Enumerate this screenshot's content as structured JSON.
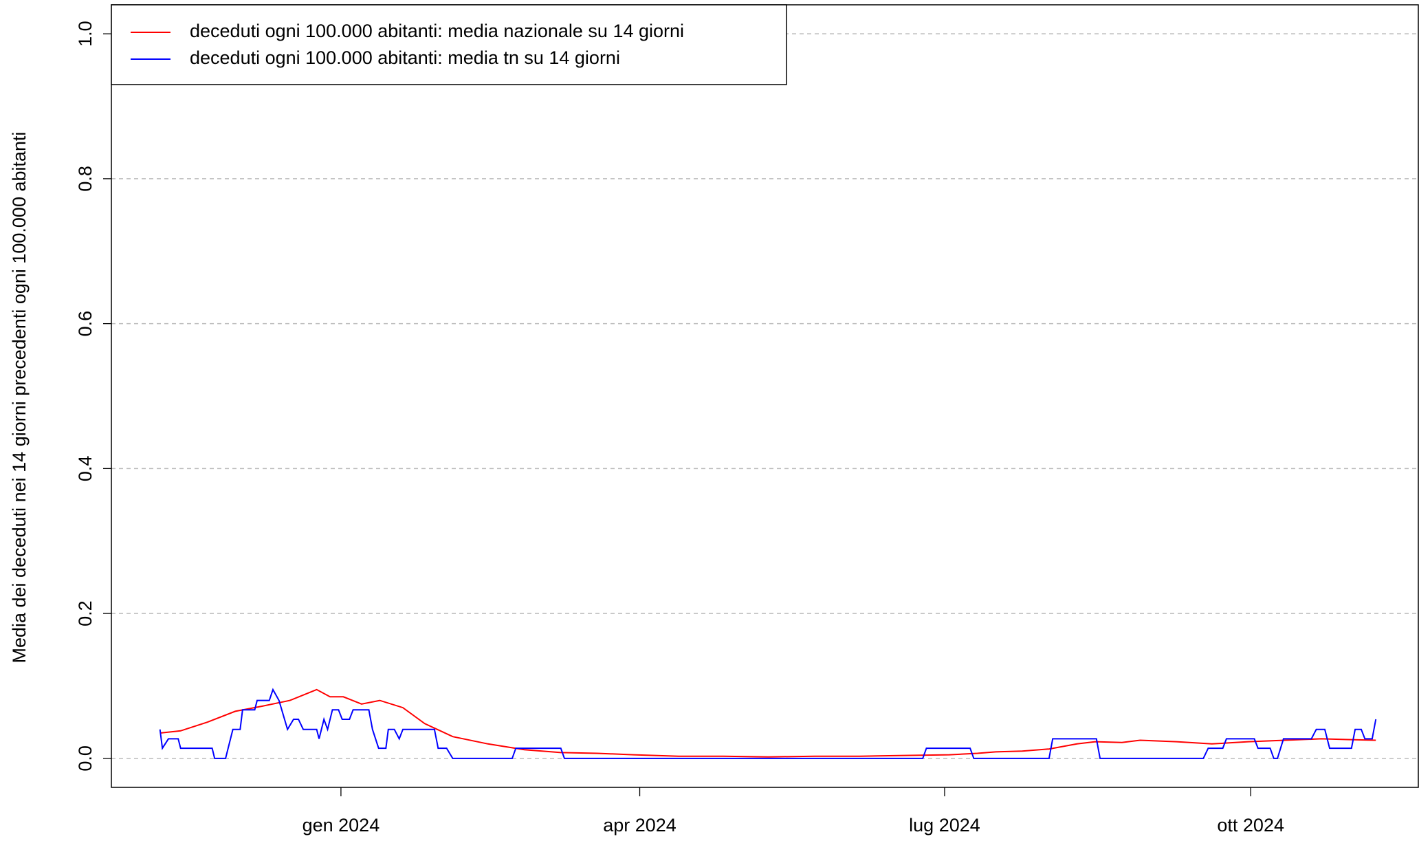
{
  "chart_data": {
    "type": "line",
    "y_label": "Media dei deceduti nei 14 giorni precedenti ogni 100.000 abitanti",
    "xlim": [
      2023.811,
      2024.887
    ],
    "xticks": [
      {
        "value": 2024.0,
        "label": "gen 2024"
      },
      {
        "value": 2024.246,
        "label": "apr 2024"
      },
      {
        "value": 2024.497,
        "label": "lug 2024"
      },
      {
        "value": 2024.749,
        "label": "ott 2024"
      }
    ],
    "ylim": [
      -0.04,
      1.04
    ],
    "yticks": [
      {
        "value": 0,
        "label": "0.0"
      },
      0.2,
      0.4,
      0.6,
      0.8,
      {
        "value": 1,
        "label": "1.0"
      }
    ],
    "grid": true,
    "legend_position": "top-left",
    "series": [
      {
        "name": "deceduti ogni 100.000 abitanti: media nazionale su 14 giorni",
        "color": "#ff0000",
        "x": [
          2023.851,
          2023.868,
          2023.89,
          2023.913,
          2023.935,
          2023.958,
          2023.98,
          2023.991,
          2024.002,
          2024.017,
          2024.032,
          2024.051,
          2024.069,
          2024.092,
          2024.121,
          2024.151,
          2024.181,
          2024.211,
          2024.241,
          2024.278,
          2024.315,
          2024.352,
          2024.39,
          2024.427,
          2024.464,
          2024.501,
          2024.524,
          2024.539,
          2024.561,
          2024.583,
          2024.606,
          2024.621,
          2024.643,
          2024.658,
          2024.688,
          2024.717,
          2024.747,
          2024.777,
          2024.807,
          2024.829,
          2024.852
        ],
        "values": [
          0.035,
          0.038,
          0.05,
          0.065,
          0.072,
          0.08,
          0.095,
          0.085,
          0.085,
          0.075,
          0.08,
          0.07,
          0.048,
          0.03,
          0.02,
          0.012,
          0.008,
          0.007,
          0.005,
          0.003,
          0.003,
          0.002,
          0.003,
          0.003,
          0.004,
          0.005,
          0.007,
          0.009,
          0.01,
          0.013,
          0.02,
          0.023,
          0.022,
          0.025,
          0.023,
          0.02,
          0.023,
          0.025,
          0.027,
          0.026,
          0.025
        ]
      },
      {
        "name": "deceduti ogni 100.000 abitanti: media tn su 14 giorni",
        "color": "#0000ff",
        "x": [
          2023.851,
          2023.853,
          2023.858,
          2023.866,
          2023.868,
          2023.894,
          2023.896,
          2023.905,
          2023.911,
          2023.917,
          2023.919,
          2023.929,
          2023.931,
          2023.941,
          2023.944,
          2023.949,
          2023.956,
          2023.961,
          2023.965,
          2023.969,
          2023.98,
          2023.982,
          2023.986,
          2023.989,
          2023.993,
          2023.998,
          2024.001,
          2024.007,
          2024.01,
          2024.023,
          2024.026,
          2024.031,
          2024.037,
          2024.039,
          2024.044,
          2024.048,
          2024.051,
          2024.077,
          2024.08,
          2024.087,
          2024.092,
          2024.141,
          2024.144,
          2024.181,
          2024.184,
          2024.479,
          2024.482,
          2024.518,
          2024.521,
          2024.583,
          2024.586,
          2024.622,
          2024.625,
          2024.71,
          2024.714,
          2024.726,
          2024.729,
          2024.752,
          2024.755,
          2024.765,
          2024.768,
          2024.771,
          2024.776,
          2024.799,
          2024.803,
          2024.81,
          2024.814,
          2024.832,
          2024.835,
          2024.84,
          2024.843,
          2024.849,
          2024.852
        ],
        "values": [
          0.04,
          0.014,
          0.027,
          0.027,
          0.014,
          0.014,
          0,
          0,
          0.04,
          0.04,
          0.067,
          0.067,
          0.08,
          0.08,
          0.095,
          0.08,
          0.04,
          0.054,
          0.054,
          0.04,
          0.04,
          0.027,
          0.054,
          0.04,
          0.067,
          0.067,
          0.054,
          0.054,
          0.067,
          0.067,
          0.04,
          0.014,
          0.014,
          0.04,
          0.04,
          0.027,
          0.04,
          0.04,
          0.014,
          0.014,
          0,
          0,
          0.014,
          0.014,
          0,
          0,
          0.014,
          0.014,
          0,
          0,
          0.027,
          0.027,
          0,
          0,
          0.014,
          0.014,
          0.027,
          0.027,
          0.014,
          0.014,
          0,
          0,
          0.027,
          0.027,
          0.04,
          0.04,
          0.014,
          0.014,
          0.04,
          0.04,
          0.027,
          0.027,
          0.054
        ]
      }
    ]
  }
}
